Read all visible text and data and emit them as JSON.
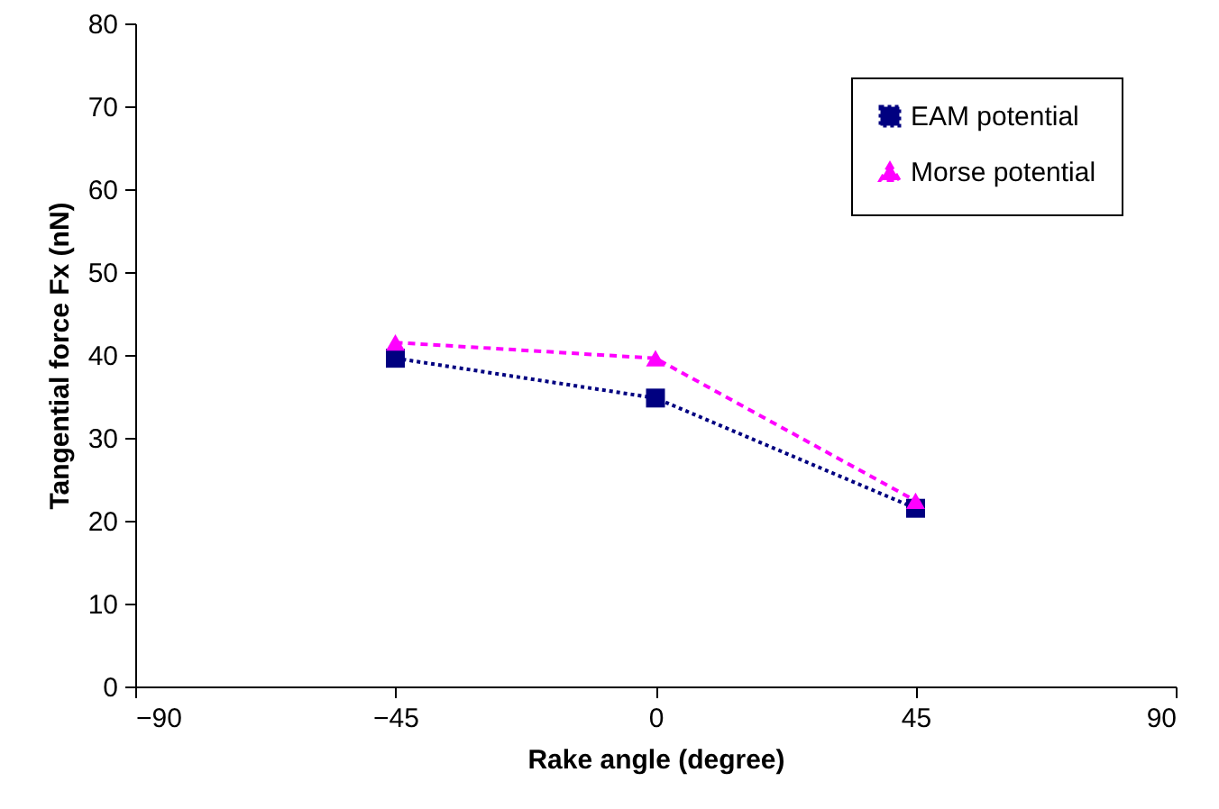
{
  "chart_data": {
    "type": "line",
    "xlabel": "Rake angle (degree)",
    "ylabel": "Tangential force Fx (nN)",
    "x": [
      -45,
      0,
      45
    ],
    "series": [
      {
        "name": "EAM potential",
        "color": "#000080",
        "values": [
          39.6,
          34.8,
          21.5
        ],
        "marker": "square",
        "line_style": "dotted"
      },
      {
        "name": "Morse potential",
        "color": "#ff00ff",
        "values": [
          41.5,
          39.6,
          22.4
        ],
        "marker": "triangle",
        "line_style": "dashed"
      }
    ],
    "xlim": [
      -90,
      90
    ],
    "xticks": [
      -90,
      -45,
      0,
      45,
      90
    ],
    "ylim": [
      0,
      80
    ],
    "yticks": [
      0,
      10,
      20,
      30,
      40,
      50,
      60,
      70,
      80
    ],
    "grid": false,
    "legend": "top right"
  }
}
